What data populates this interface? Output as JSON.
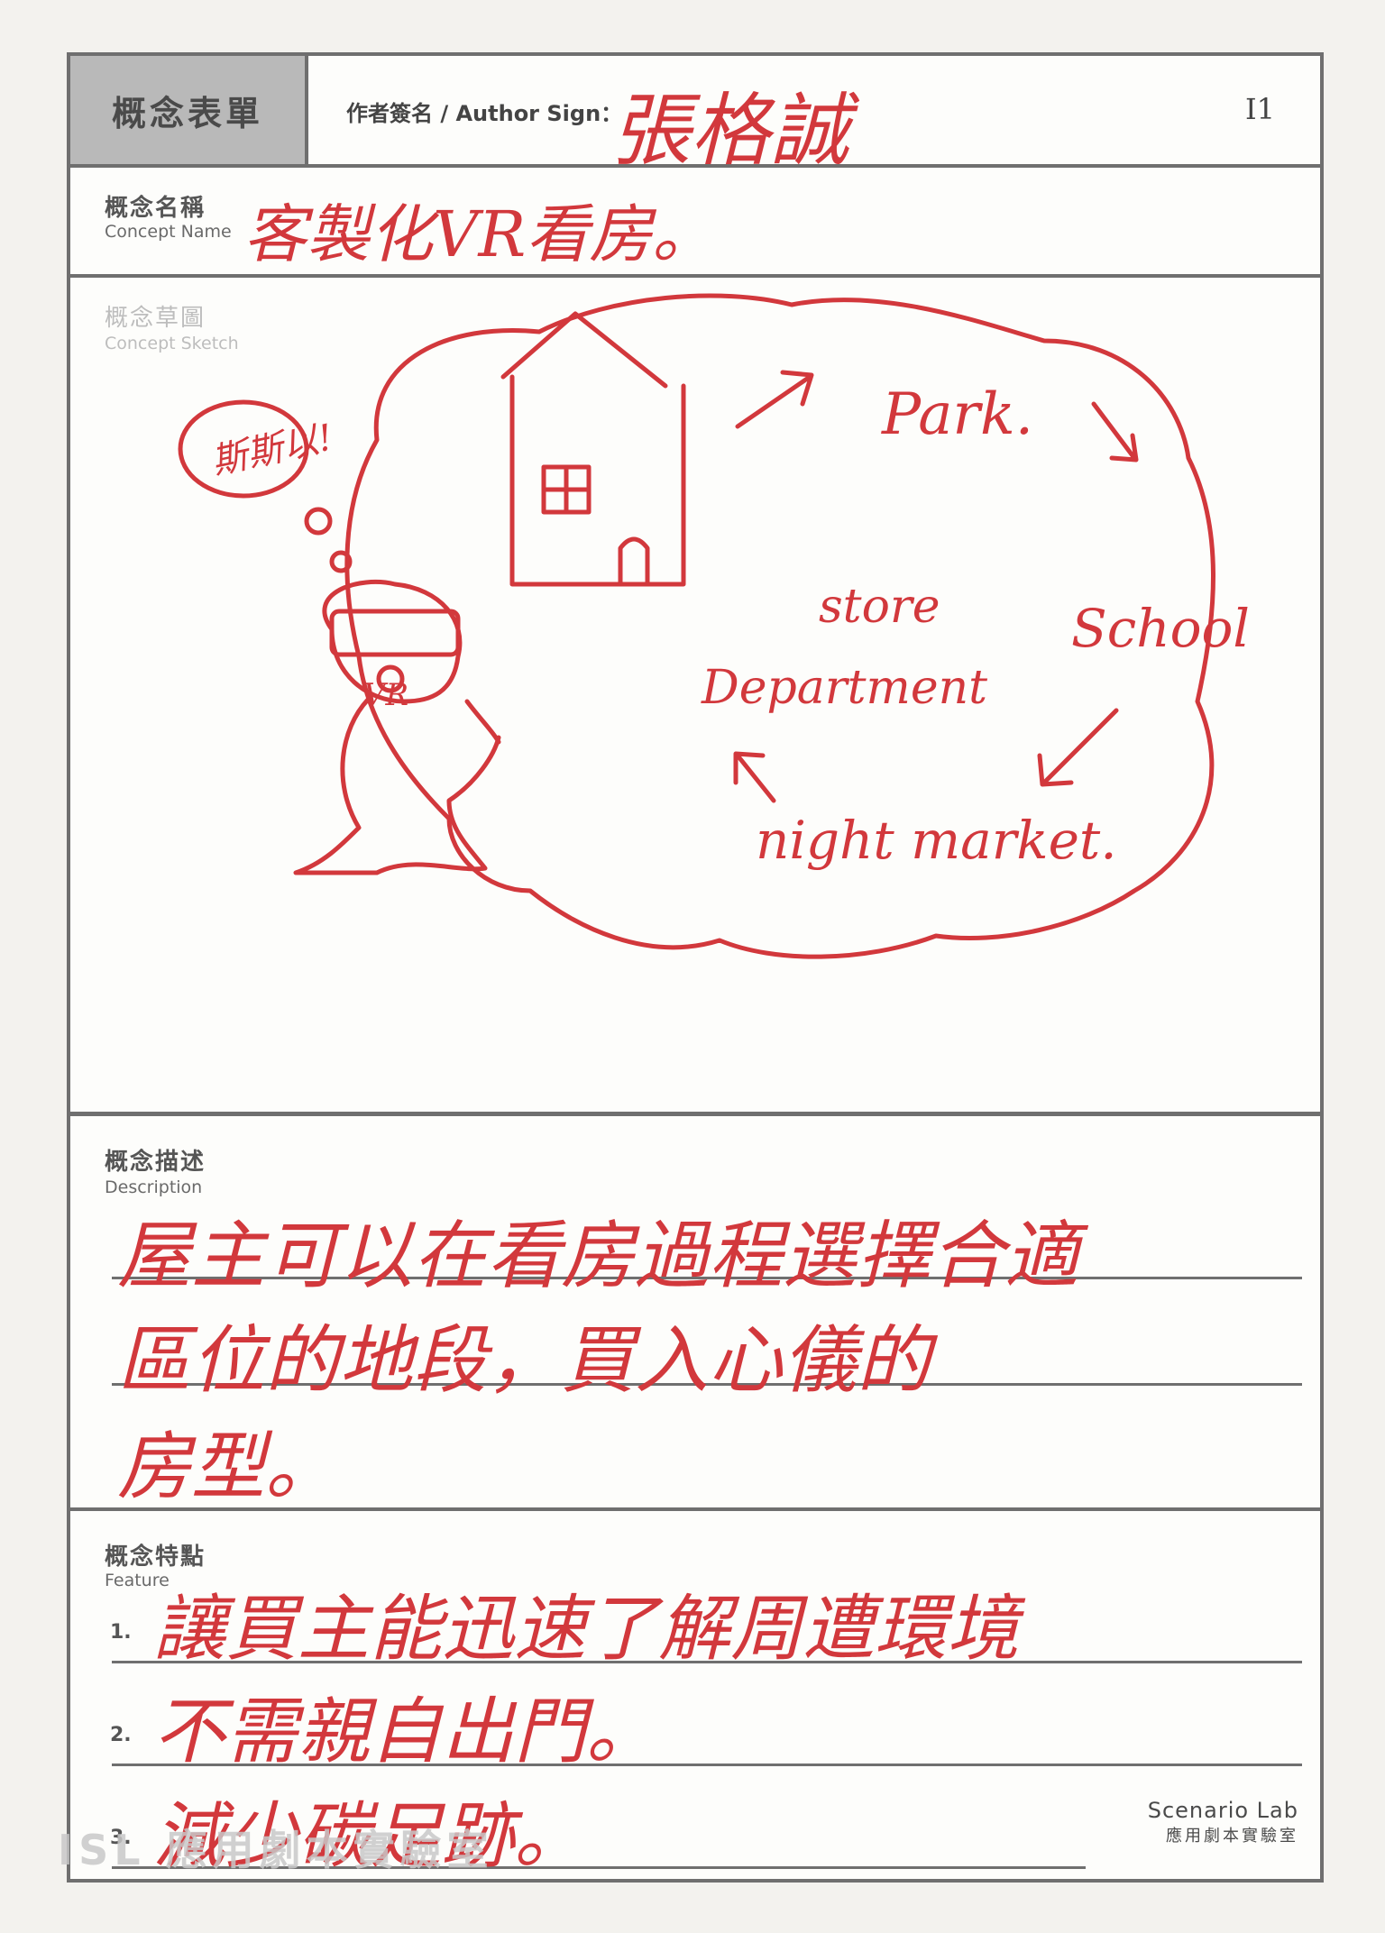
{
  "header": {
    "form_title": "概念表單",
    "author_label": "作者簽名 / Author Sign：",
    "author_signature": "張格誠",
    "sheet_id": "I1"
  },
  "concept_name": {
    "label_zh": "概念名稱",
    "label_en": "Concept Name",
    "value": "客製化VR看房。"
  },
  "concept_sketch": {
    "label_zh": "概念草圖",
    "label_en": "Concept Sketch",
    "speech": "斯斯以!",
    "headset_label": "VR",
    "places": {
      "park": "Park.",
      "school": "School",
      "store": "store",
      "department": "Department",
      "night_market": "night market."
    }
  },
  "description": {
    "label_zh": "概念描述",
    "label_en": "Description",
    "lines": [
      "屋主可以在看房過程選擇合適",
      "區位的地段，買入心儀的",
      "房型。"
    ]
  },
  "feature": {
    "label_zh": "概念特點",
    "label_en": "Feature",
    "items": [
      {
        "num": "1.",
        "text": "讓買主能迅速了解周遭環境"
      },
      {
        "num": "2.",
        "text": "不需親自出門。"
      },
      {
        "num": "3.",
        "text": "減少碳足跡。"
      }
    ]
  },
  "brand": {
    "en": "Scenario Lab",
    "zh": "應用劇本實驗室"
  },
  "watermark": "ISL 應用劇本實驗室"
}
